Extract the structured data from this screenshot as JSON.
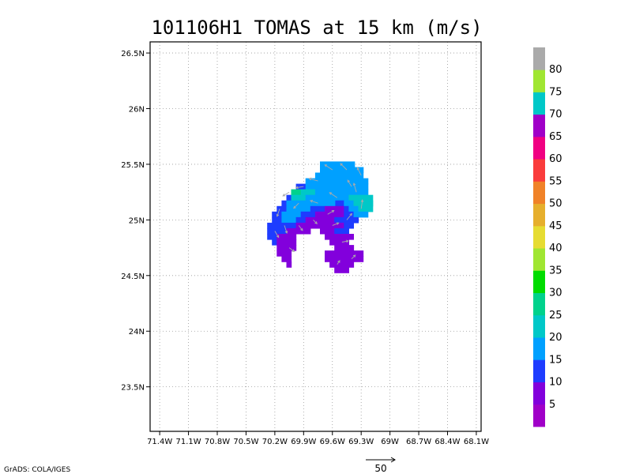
{
  "chart_data": {
    "type": "heatmap",
    "title": "101106H1 TOMAS at 15 km (m/s)",
    "x_ticks": [
      "71.4W",
      "71.1W",
      "70.8W",
      "70.5W",
      "70.2W",
      "69.9W",
      "69.6W",
      "69.3W",
      "69W",
      "68.7W",
      "68.4W",
      "68.1W"
    ],
    "y_ticks": [
      "23.5N",
      "24N",
      "24.5N",
      "25N",
      "25.5N",
      "26N",
      "26.5N"
    ],
    "xlim": [
      -71.5,
      -68.05
    ],
    "ylim": [
      23.1,
      26.6
    ],
    "grid": true,
    "grid_spacing_deg": 0.05,
    "colorbar": {
      "labels": [
        "5",
        "10",
        "15",
        "20",
        "25",
        "30",
        "35",
        "40",
        "45",
        "50",
        "55",
        "60",
        "65",
        "70",
        "75",
        "80"
      ],
      "colors": [
        "#a000c8",
        "#8200dc",
        "#1e3cff",
        "#00a0ff",
        "#00c8c8",
        "#00d28c",
        "#00dc00",
        "#a0e632",
        "#e6dc32",
        "#e6af2d",
        "#f08228",
        "#fa3c3c",
        "#f00082",
        "#a000c8",
        "#00c8c8",
        "#a0e632",
        "#aaaaaa"
      ]
    },
    "wind_rows": [
      {
        "lat": 25.5,
        "cells": [
          [
            -69.73,
            -69.37,
            3
          ]
        ]
      },
      {
        "lat": 25.45,
        "cells": [
          [
            -69.73,
            -69.28,
            3
          ]
        ]
      },
      {
        "lat": 25.4,
        "cells": [
          [
            -69.78,
            -69.57,
            3
          ],
          [
            -69.57,
            -69.28,
            3
          ]
        ]
      },
      {
        "lat": 25.35,
        "cells": [
          [
            -69.88,
            -69.78,
            3
          ],
          [
            -69.78,
            -69.57,
            3
          ],
          [
            -69.57,
            -69.23,
            3
          ]
        ]
      },
      {
        "lat": 25.3,
        "cells": [
          [
            -69.98,
            -69.88,
            2
          ],
          [
            -69.88,
            -69.78,
            3
          ],
          [
            -69.78,
            -69.62,
            3
          ],
          [
            -69.62,
            -69.23,
            3
          ]
        ]
      },
      {
        "lat": 25.25,
        "cells": [
          [
            -70.03,
            -69.93,
            5
          ],
          [
            -69.93,
            -69.78,
            4
          ],
          [
            -69.78,
            -69.23,
            3
          ]
        ]
      },
      {
        "lat": 25.2,
        "cells": [
          [
            -70.08,
            -70.03,
            2
          ],
          [
            -70.03,
            -69.88,
            4
          ],
          [
            -69.88,
            -69.67,
            3
          ],
          [
            -69.67,
            -69.43,
            3
          ],
          [
            -69.43,
            -69.28,
            4
          ],
          [
            -69.28,
            -69.18,
            4
          ]
        ]
      },
      {
        "lat": 25.15,
        "cells": [
          [
            -70.13,
            -70.08,
            2
          ],
          [
            -70.08,
            -69.98,
            3
          ],
          [
            -69.98,
            -69.78,
            3
          ],
          [
            -69.78,
            -69.57,
            3
          ],
          [
            -69.57,
            -69.48,
            2
          ],
          [
            -69.48,
            -69.38,
            3
          ],
          [
            -69.38,
            -69.18,
            4
          ]
        ]
      },
      {
        "lat": 25.1,
        "cells": [
          [
            -70.18,
            -70.08,
            2
          ],
          [
            -70.08,
            -70.0,
            3
          ],
          [
            -70.0,
            -69.83,
            3
          ],
          [
            -69.83,
            -69.68,
            2
          ],
          [
            -69.68,
            -69.48,
            1
          ],
          [
            -69.48,
            -69.43,
            2
          ],
          [
            -69.43,
            -69.33,
            3
          ],
          [
            -69.33,
            -69.18,
            4
          ]
        ]
      },
      {
        "lat": 25.05,
        "cells": [
          [
            -70.23,
            -70.13,
            2
          ],
          [
            -70.13,
            -70.03,
            3
          ],
          [
            -70.03,
            -69.93,
            3
          ],
          [
            -69.93,
            -69.78,
            2
          ],
          [
            -69.78,
            -69.48,
            1
          ],
          [
            -69.48,
            -69.38,
            2
          ],
          [
            -69.38,
            -69.23,
            3
          ]
        ]
      },
      {
        "lat": 25.0,
        "cells": [
          [
            -70.23,
            -70.13,
            2
          ],
          [
            -70.13,
            -69.98,
            3
          ],
          [
            -69.98,
            -69.88,
            2
          ],
          [
            -69.88,
            -69.78,
            1
          ],
          [
            -69.78,
            -69.58,
            1
          ],
          [
            -69.58,
            -69.43,
            2
          ],
          [
            -69.43,
            -69.33,
            2
          ]
        ]
      },
      {
        "lat": 24.95,
        "cells": [
          [
            -70.28,
            -70.13,
            2
          ],
          [
            -70.13,
            -69.98,
            2
          ],
          [
            -69.98,
            -69.78,
            1
          ],
          [
            -69.78,
            -69.68,
            1
          ],
          [
            -69.68,
            -69.48,
            1
          ],
          [
            -69.48,
            -69.38,
            2
          ]
        ]
      },
      {
        "lat": 24.9,
        "cells": [
          [
            -70.28,
            -70.08,
            2
          ],
          [
            -70.08,
            -69.93,
            1
          ],
          [
            -69.93,
            -69.83,
            1
          ],
          [
            -69.73,
            -69.58,
            1
          ],
          [
            -69.58,
            -69.43,
            2
          ]
        ]
      },
      {
        "lat": 24.85,
        "cells": [
          [
            -70.28,
            -70.18,
            2
          ],
          [
            -70.18,
            -69.98,
            1
          ],
          [
            -69.68,
            -69.38,
            1
          ]
        ]
      },
      {
        "lat": 24.8,
        "cells": [
          [
            -70.23,
            -70.18,
            2
          ],
          [
            -70.18,
            -69.98,
            1
          ],
          [
            -69.63,
            -69.43,
            1
          ]
        ]
      },
      {
        "lat": 24.75,
        "cells": [
          [
            -70.18,
            -69.98,
            1
          ],
          [
            -69.58,
            -69.38,
            1
          ]
        ]
      },
      {
        "lat": 24.7,
        "cells": [
          [
            -70.18,
            -70.03,
            1
          ],
          [
            -69.68,
            -69.28,
            1
          ]
        ]
      },
      {
        "lat": 24.65,
        "cells": [
          [
            -70.13,
            -70.03,
            1
          ],
          [
            -69.68,
            -69.28,
            1
          ]
        ]
      },
      {
        "lat": 24.6,
        "cells": [
          [
            -70.08,
            -70.03,
            1
          ],
          [
            -69.63,
            -69.38,
            1
          ]
        ]
      },
      {
        "lat": 24.55,
        "cells": [
          [
            -69.58,
            -69.43,
            1
          ]
        ]
      }
    ],
    "vectors": [
      {
        "lon": -69.6,
        "lat": 25.45,
        "u": -6,
        "v": 4
      },
      {
        "lon": -69.45,
        "lat": 25.45,
        "u": -5,
        "v": 5
      },
      {
        "lon": -69.3,
        "lat": 25.4,
        "u": -3,
        "v": 6
      },
      {
        "lon": -69.75,
        "lat": 25.35,
        "u": -7,
        "v": 2
      },
      {
        "lon": -69.9,
        "lat": 25.3,
        "u": -6,
        "v": -1
      },
      {
        "lon": -70.05,
        "lat": 25.25,
        "u": -5,
        "v": -3
      },
      {
        "lon": -70.15,
        "lat": 25.1,
        "u": -2,
        "v": -6
      },
      {
        "lon": -70.1,
        "lat": 24.95,
        "u": 2,
        "v": -6
      },
      {
        "lon": -69.95,
        "lat": 25.15,
        "u": -4,
        "v": -4
      },
      {
        "lon": -69.75,
        "lat": 25.15,
        "u": -6,
        "v": 2
      },
      {
        "lon": -69.55,
        "lat": 25.2,
        "u": -6,
        "v": 4
      },
      {
        "lon": -69.35,
        "lat": 25.25,
        "u": -2,
        "v": 7
      },
      {
        "lon": -69.3,
        "lat": 25.1,
        "u": 1,
        "v": 7
      },
      {
        "lon": -69.45,
        "lat": 25.0,
        "u": 4,
        "v": 5
      },
      {
        "lon": -69.6,
        "lat": 24.95,
        "u": 5,
        "v": 2
      },
      {
        "lon": -69.8,
        "lat": 25.0,
        "u": 3,
        "v": -3
      },
      {
        "lon": -69.95,
        "lat": 24.95,
        "u": 3,
        "v": -4
      },
      {
        "lon": -70.2,
        "lat": 24.9,
        "u": 3,
        "v": -5
      },
      {
        "lon": -70.05,
        "lat": 24.75,
        "u": 4,
        "v": -3
      },
      {
        "lon": -69.5,
        "lat": 24.8,
        "u": 5,
        "v": 1
      },
      {
        "lon": -69.4,
        "lat": 24.65,
        "u": 3,
        "v": 3
      },
      {
        "lon": -69.55,
        "lat": 24.6,
        "u": 2,
        "v": 3
      },
      {
        "lon": -69.65,
        "lat": 25.05,
        "u": 5,
        "v": 3
      },
      {
        "lon": -69.4,
        "lat": 25.3,
        "u": -3,
        "v": 5
      }
    ],
    "reference_vector": {
      "label": "50"
    },
    "credit": "GrADS: COLA/IGES"
  }
}
